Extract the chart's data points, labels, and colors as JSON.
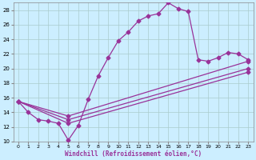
{
  "xlabel": "Windchill (Refroidissement éolien,°C)",
  "bg_color": "#cceeff",
  "line_color": "#993399",
  "grid_color": "#aacccc",
  "xlim": [
    -0.5,
    23.5
  ],
  "ylim": [
    10,
    29
  ],
  "yticks": [
    10,
    12,
    14,
    16,
    18,
    20,
    22,
    24,
    26,
    28
  ],
  "xticks": [
    0,
    1,
    2,
    3,
    4,
    5,
    6,
    7,
    8,
    9,
    10,
    11,
    12,
    13,
    14,
    15,
    16,
    17,
    18,
    19,
    20,
    21,
    22,
    23
  ],
  "series1_x": [
    0,
    1,
    2,
    3,
    4,
    5,
    6,
    7,
    8,
    9,
    10,
    11,
    12,
    13,
    14,
    15,
    16,
    17,
    18,
    19,
    20,
    21,
    22,
    23
  ],
  "series1_y": [
    15.5,
    14.0,
    13.0,
    12.8,
    12.5,
    10.2,
    12.2,
    15.8,
    19.0,
    21.5,
    23.8,
    25.0,
    26.5,
    27.2,
    27.5,
    29.0,
    28.2,
    27.8,
    21.2,
    21.0,
    21.5,
    22.2,
    22.0,
    21.2
  ],
  "series2_x": [
    0,
    5,
    23
  ],
  "series2_y": [
    15.5,
    13.5,
    21.0
  ],
  "series3_x": [
    0,
    5,
    23
  ],
  "series3_y": [
    15.5,
    13.0,
    20.0
  ],
  "series4_x": [
    0,
    5,
    23
  ],
  "series4_y": [
    15.5,
    12.5,
    19.5
  ]
}
